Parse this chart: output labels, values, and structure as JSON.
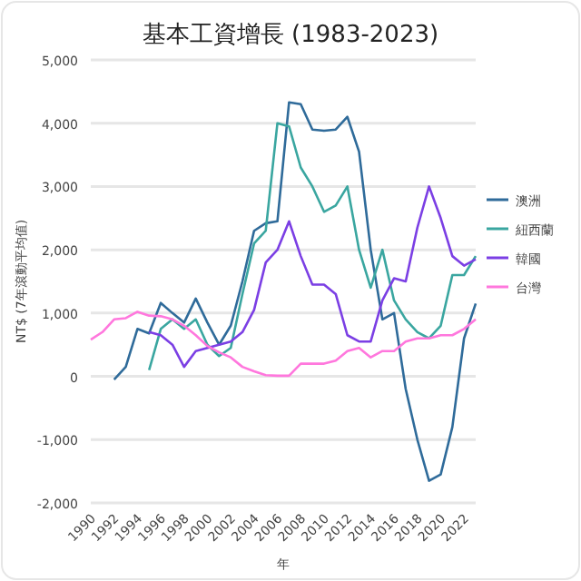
{
  "chart_data": {
    "type": "line",
    "title": "基本工資增長 (1983-2023)",
    "xlabel": "年",
    "ylabel": "NT$ (7年滾動平均值)",
    "xlim": [
      1990,
      2023
    ],
    "xticks": [
      1990,
      1992,
      1994,
      1996,
      1998,
      2000,
      2002,
      2004,
      2006,
      2008,
      2010,
      2012,
      2014,
      2016,
      2018,
      2020,
      2022
    ],
    "ylim": [
      -2000,
      5000
    ],
    "yticks": [
      {
        "value": -2000,
        "label": "-2,000"
      },
      {
        "value": -1000,
        "label": "-1,000"
      },
      0,
      {
        "value": 1000,
        "label": "1,000"
      },
      {
        "value": 2000,
        "label": "2,000"
      },
      {
        "value": 3000,
        "label": "3,000"
      },
      {
        "value": 4000,
        "label": "4,000"
      },
      {
        "value": 5000,
        "label": "5,000"
      }
    ],
    "grid": "y",
    "legend": "right",
    "series": [
      {
        "name": "澳洲",
        "color": "#2f6b9a",
        "x": [
          1992,
          1993,
          1994,
          1995,
          1996,
          1997,
          1998,
          1999,
          2000,
          2001,
          2002,
          2003,
          2004,
          2005,
          2006,
          2007,
          2008,
          2009,
          2010,
          2011,
          2012,
          2013,
          2014,
          2015,
          2016,
          2017,
          2018,
          2019,
          2020,
          2021,
          2022,
          2023
        ],
        "values": [
          -50,
          150,
          750,
          680,
          1160,
          1000,
          850,
          1230,
          850,
          500,
          800,
          1500,
          2300,
          2420,
          2450,
          4330,
          4300,
          3900,
          3880,
          3900,
          4100,
          3550,
          2000,
          900,
          1000,
          -200,
          -1000,
          -1650,
          -1550,
          -800,
          600,
          1150
        ]
      },
      {
        "name": "紐西蘭",
        "color": "#3aa6a0",
        "x": [
          1995,
          1996,
          1997,
          1998,
          1999,
          2000,
          2001,
          2002,
          2003,
          2004,
          2005,
          2006,
          2007,
          2008,
          2009,
          2010,
          2011,
          2012,
          2013,
          2014,
          2015,
          2016,
          2017,
          2018,
          2019,
          2020,
          2021,
          2022,
          2023
        ],
        "values": [
          100,
          750,
          900,
          750,
          900,
          500,
          320,
          450,
          1300,
          2100,
          2300,
          4000,
          3950,
          3300,
          3000,
          2600,
          2700,
          3000,
          2000,
          1400,
          2000,
          1200,
          900,
          700,
          600,
          800,
          1600,
          1600,
          1900
        ]
      },
      {
        "name": "韓國",
        "color": "#7b3fe4",
        "x": [
          1995,
          1996,
          1997,
          1998,
          1999,
          2000,
          2001,
          2002,
          2003,
          2004,
          2005,
          2006,
          2007,
          2008,
          2009,
          2010,
          2011,
          2012,
          2013,
          2014,
          2015,
          2016,
          2017,
          2018,
          2019,
          2020,
          2021,
          2022,
          2023
        ],
        "values": [
          700,
          650,
          500,
          150,
          400,
          450,
          500,
          550,
          700,
          1050,
          1800,
          2000,
          2450,
          1900,
          1450,
          1450,
          1300,
          650,
          550,
          550,
          1200,
          1550,
          1500,
          2350,
          3000,
          2500,
          1900,
          1750,
          1850
        ]
      },
      {
        "name": "台灣",
        "color": "#ff77dd",
        "x": [
          1990,
          1991,
          1992,
          1993,
          1994,
          1995,
          1996,
          1997,
          1998,
          1999,
          2000,
          2001,
          2002,
          2003,
          2004,
          2005,
          2006,
          2007,
          2008,
          2009,
          2010,
          2011,
          2012,
          2013,
          2014,
          2015,
          2016,
          2017,
          2018,
          2019,
          2020,
          2021,
          2022,
          2023
        ],
        "values": [
          580,
          700,
          900,
          920,
          1020,
          960,
          950,
          900,
          800,
          650,
          480,
          380,
          300,
          150,
          80,
          20,
          10,
          10,
          200,
          200,
          200,
          250,
          400,
          450,
          300,
          400,
          400,
          550,
          600,
          600,
          650,
          650,
          750,
          900
        ]
      }
    ]
  }
}
